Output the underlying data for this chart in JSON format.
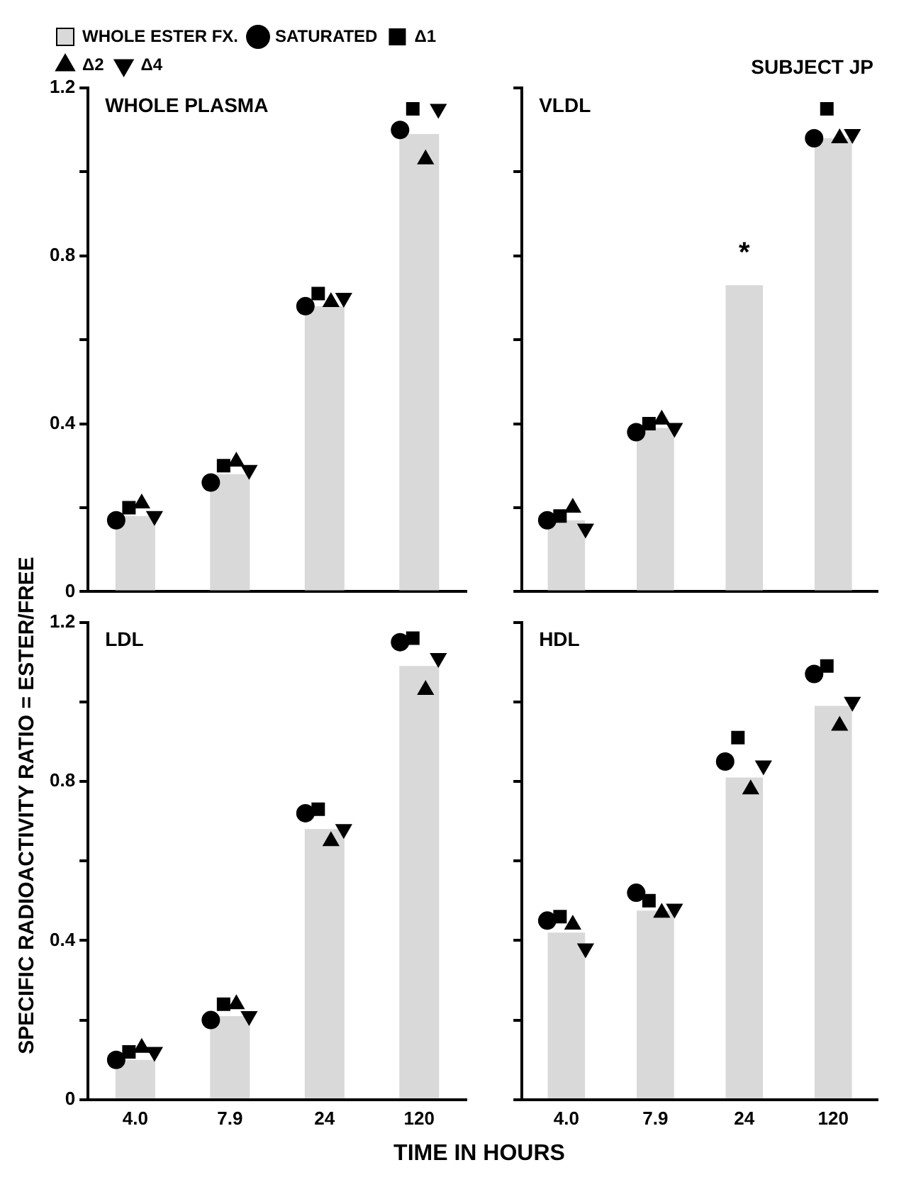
{
  "chart_data": [
    {
      "type": "bar",
      "title": "WHOLE PLASMA",
      "ylabel": "SPECIFIC RADIOACTIVITY RATIO = ESTER/FREE",
      "categories": [
        "4.0",
        "7.9",
        "24",
        "120"
      ],
      "ylim": [
        0,
        1.2
      ],
      "yticks": [
        0,
        {
          "value": 0.2,
          "label": null
        },
        0.4,
        {
          "value": 0.6,
          "label": null
        },
        0.8,
        {
          "value": 1.0,
          "label": null
        },
        1.2
      ],
      "grid": false,
      "legend": "top left",
      "tick_labels": "y",
      "series": [
        {
          "name": "WHOLE ESTER FX.",
          "color": "#d9d9d9",
          "values": [
            0.18,
            0.28,
            0.68,
            1.09
          ]
        },
        {
          "name": "SATURATED",
          "type": "scatter",
          "marker": "circle",
          "color": "#000000",
          "values": [
            0.17,
            0.26,
            0.68,
            1.1
          ]
        },
        {
          "name": "Δ1",
          "type": "scatter",
          "marker": "square",
          "color": "#000000",
          "values": [
            0.2,
            0.3,
            0.71,
            1.15
          ]
        },
        {
          "name": "Δ2",
          "type": "scatter",
          "marker": "triangle",
          "color": "#000000",
          "values": [
            0.21,
            0.31,
            0.69,
            1.03
          ]
        },
        {
          "name": "Δ4",
          "type": "scatter",
          "marker": "triangle_down",
          "color": "#000000",
          "values": [
            0.18,
            0.29,
            0.7,
            1.15
          ]
        }
      ]
    },
    {
      "type": "bar",
      "title": "VLDL",
      "categories": [
        "4.0",
        "7.9",
        "24",
        "120"
      ],
      "ylim": [
        0,
        1.2
      ],
      "yticks": [
        0,
        {
          "value": 0.2,
          "label": null
        },
        0.4,
        {
          "value": 0.6,
          "label": null
        },
        0.8,
        {
          "value": 1.0,
          "label": null
        },
        1.2
      ],
      "grid": false,
      "tick_labels": false,
      "annotations": [
        "SUBJECT JP",
        {
          "text": "*",
          "x": "24",
          "y": 0.73
        }
      ],
      "series": [
        {
          "color": "#d9d9d9",
          "values": [
            0.17,
            0.39,
            0.73,
            1.08
          ]
        },
        {
          "type": "scatter",
          "marker": "circle",
          "color": "#000000",
          "values": [
            0.17,
            0.38,
            null,
            1.08
          ]
        },
        {
          "type": "scatter",
          "marker": "square",
          "color": "#000000",
          "values": [
            0.18,
            0.4,
            null,
            1.15
          ]
        },
        {
          "type": "scatter",
          "marker": "triangle",
          "color": "#000000",
          "values": [
            0.2,
            0.41,
            null,
            1.08
          ]
        },
        {
          "type": "scatter",
          "marker": "triangle_down",
          "color": "#000000",
          "values": [
            0.15,
            0.39,
            null,
            1.09
          ]
        }
      ]
    },
    {
      "type": "bar",
      "title": "LDL",
      "xlabel": "TIME IN HOURS",
      "categories": [
        "4.0",
        "7.9",
        "24",
        "120"
      ],
      "ylim": [
        0,
        1.2
      ],
      "yticks": [
        0,
        {
          "value": 0.2,
          "label": null
        },
        0.4,
        {
          "value": 0.6,
          "label": null
        },
        0.8,
        {
          "value": 1.0,
          "label": null
        },
        1.2
      ],
      "grid": false,
      "series": [
        {
          "color": "#d9d9d9",
          "values": [
            0.1,
            0.21,
            0.68,
            1.09
          ]
        },
        {
          "type": "scatter",
          "marker": "circle",
          "color": "#000000",
          "values": [
            0.1,
            0.2,
            0.72,
            1.15
          ]
        },
        {
          "type": "scatter",
          "marker": "square",
          "color": "#000000",
          "values": [
            0.12,
            0.24,
            0.73,
            1.16
          ]
        },
        {
          "type": "scatter",
          "marker": "triangle",
          "color": "#000000",
          "values": [
            0.13,
            0.24,
            0.65,
            1.03
          ]
        },
        {
          "type": "scatter",
          "marker": "triangle_down",
          "color": "#000000",
          "values": [
            0.12,
            0.21,
            0.68,
            1.11
          ]
        }
      ]
    },
    {
      "type": "bar",
      "title": "HDL",
      "categories": [
        "4.0",
        "7.9",
        "24",
        "120"
      ],
      "ylim": [
        0,
        1.2
      ],
      "yticks": [
        0,
        {
          "value": 0.2,
          "label": null
        },
        0.4,
        {
          "value": 0.6,
          "label": null
        },
        0.8,
        {
          "value": 1.0,
          "label": null
        },
        1.2
      ],
      "grid": false,
      "tick_labels": "x",
      "series": [
        {
          "color": "#d9d9d9",
          "values": [
            0.42,
            0.475,
            0.81,
            0.99
          ]
        },
        {
          "type": "scatter",
          "marker": "circle",
          "color": "#000000",
          "values": [
            0.45,
            0.52,
            0.85,
            1.07
          ]
        },
        {
          "type": "scatter",
          "marker": "square",
          "color": "#000000",
          "values": [
            0.46,
            0.5,
            0.91,
            1.09
          ]
        },
        {
          "type": "scatter",
          "marker": "triangle",
          "color": "#000000",
          "values": [
            0.44,
            0.47,
            0.78,
            0.94
          ]
        },
        {
          "type": "scatter",
          "marker": "triangle_down",
          "color": "#000000",
          "values": [
            0.38,
            0.48,
            0.84,
            1.0
          ]
        }
      ]
    }
  ]
}
